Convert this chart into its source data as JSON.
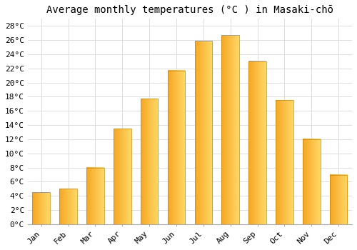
{
  "title": "Average monthly temperatures (°C ) in Masaki-chō",
  "months": [
    "Jan",
    "Feb",
    "Mar",
    "Apr",
    "May",
    "Jun",
    "Jul",
    "Aug",
    "Sep",
    "Oct",
    "Nov",
    "Dec"
  ],
  "temperatures": [
    4.5,
    5.0,
    8.0,
    13.5,
    17.7,
    21.7,
    25.9,
    26.7,
    23.0,
    17.5,
    12.0,
    7.0
  ],
  "bar_color_left": "#F5A623",
  "bar_color_right": "#FFD966",
  "bar_edge_color": "#C8860A",
  "ylim": [
    0,
    29
  ],
  "yticks": [
    0,
    2,
    4,
    6,
    8,
    10,
    12,
    14,
    16,
    18,
    20,
    22,
    24,
    26,
    28
  ],
  "ytick_labels": [
    "0°C",
    "2°C",
    "4°C",
    "6°C",
    "8°C",
    "10°C",
    "12°C",
    "14°C",
    "16°C",
    "18°C",
    "20°C",
    "22°C",
    "24°C",
    "26°C",
    "28°C"
  ],
  "grid_color": "#dddddd",
  "bg_color": "#ffffff",
  "font_family": "monospace",
  "title_fontsize": 10,
  "tick_fontsize": 8,
  "bar_width": 0.65
}
